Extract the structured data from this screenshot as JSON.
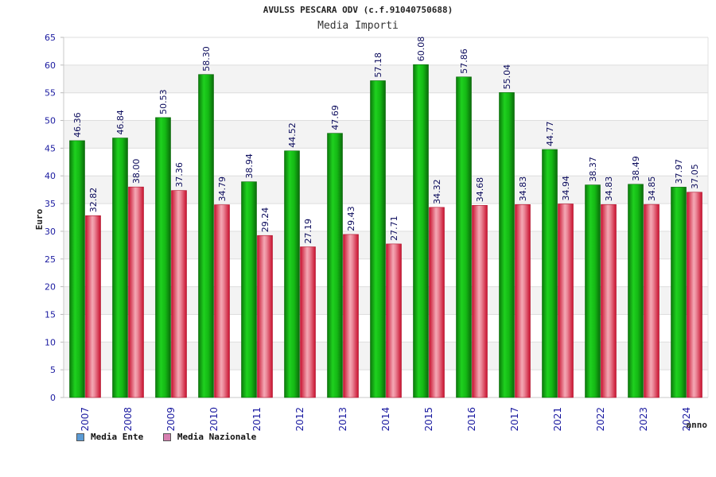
{
  "chart_data": {
    "type": "bar",
    "title": "AVULSS PESCARA ODV (c.f.91040750688)",
    "subtitle": "Media Importi",
    "xlabel": "anno",
    "ylabel": "Euro",
    "ylim": [
      0,
      65
    ],
    "yticks": [
      0,
      5,
      10,
      15,
      20,
      25,
      30,
      35,
      40,
      45,
      50,
      55,
      60,
      65
    ],
    "categories": [
      "2007",
      "2008",
      "2009",
      "2010",
      "2011",
      "2012",
      "2013",
      "2014",
      "2015",
      "2016",
      "2017",
      "2021",
      "2022",
      "2023",
      "2024"
    ],
    "series": [
      {
        "name": "Media Ente",
        "legend_color": "#5b9bd5",
        "values": [
          46.36,
          46.84,
          50.53,
          58.3,
          38.94,
          44.52,
          47.69,
          57.18,
          60.08,
          57.86,
          55.04,
          44.77,
          38.37,
          38.49,
          37.97
        ],
        "labels": [
          "46.36",
          "46.84",
          "50.53",
          "58.30",
          "38.94",
          "44.52",
          "47.69",
          "57.18",
          "60.08",
          "57.86",
          "55.04",
          "44.77",
          "38.37",
          "38.49",
          "37.97"
        ]
      },
      {
        "name": "Media Nazionale",
        "legend_color": "#d77fb0",
        "values": [
          32.82,
          38.0,
          37.36,
          34.79,
          29.24,
          27.19,
          29.43,
          27.71,
          34.32,
          34.68,
          34.83,
          34.94,
          34.83,
          34.85,
          37.05
        ],
        "labels": [
          "32.82",
          "38.00",
          "37.36",
          "34.79",
          "29.24",
          "27.19",
          "29.43",
          "27.71",
          "34.32",
          "34.68",
          "34.83",
          "34.94",
          "34.83",
          "34.85",
          "37.05"
        ]
      }
    ],
    "grid": true,
    "legend": "bottom-left"
  }
}
